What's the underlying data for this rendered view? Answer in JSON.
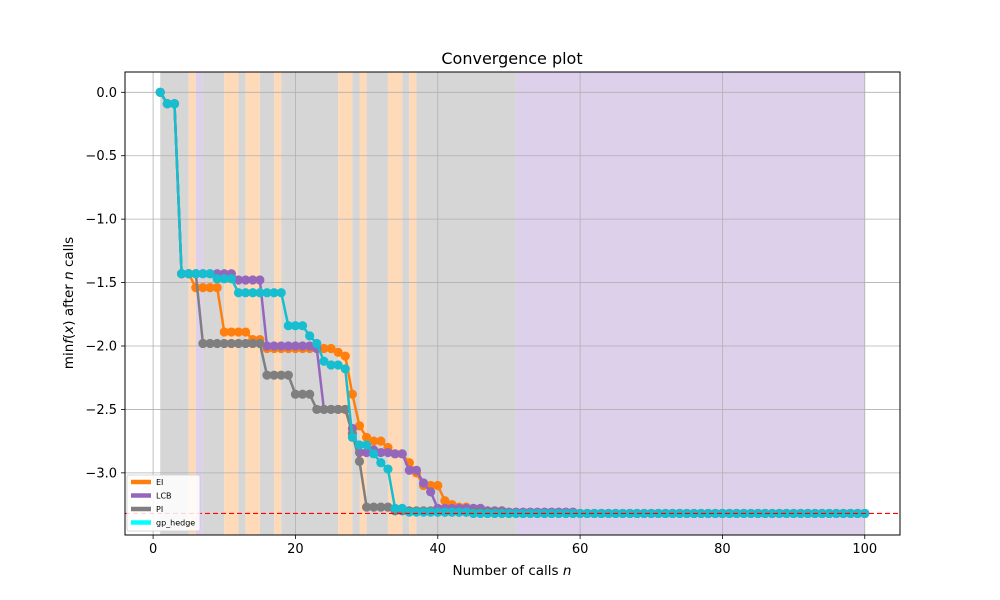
{
  "chart_data": {
    "type": "line",
    "title": "Convergence plot",
    "xlabel": "Number of calls n",
    "ylabel": "min f(x) after n calls",
    "xlim": [
      -3.95,
      104.95
    ],
    "ylim": [
      -3.49,
      0.16
    ],
    "x_ticks": [
      0,
      20,
      40,
      60,
      80,
      100
    ],
    "x_tick_labels": [
      "0",
      "20",
      "40",
      "60",
      "80",
      "100"
    ],
    "y_ticks": [
      0.0,
      -0.5,
      -1.0,
      -1.5,
      -2.0,
      -2.5,
      -3.0
    ],
    "y_tick_labels": [
      "0.0",
      "−0.5",
      "−1.0",
      "−1.5",
      "−2.0",
      "−2.5",
      "−3.0"
    ],
    "grid": true,
    "legend_position": "lower-left",
    "reference_line": {
      "y": -3.32,
      "color": "#ff0000",
      "style": "dashed"
    },
    "background_bands": [
      {
        "x0": 1,
        "x1": 5,
        "color": "#d6d6d6"
      },
      {
        "x0": 5,
        "x1": 6,
        "color": "#ffdab9"
      },
      {
        "x0": 6,
        "x1": 7,
        "color": "#dcd0eb"
      },
      {
        "x0": 7,
        "x1": 10,
        "color": "#d6d6d6"
      },
      {
        "x0": 10,
        "x1": 12,
        "color": "#ffdab9"
      },
      {
        "x0": 12,
        "x1": 13,
        "color": "#d6d6d6"
      },
      {
        "x0": 13,
        "x1": 15,
        "color": "#ffdab9"
      },
      {
        "x0": 15,
        "x1": 17,
        "color": "#d6d6d6"
      },
      {
        "x0": 17,
        "x1": 18,
        "color": "#ffdab9"
      },
      {
        "x0": 18,
        "x1": 26,
        "color": "#d6d6d6"
      },
      {
        "x0": 26,
        "x1": 28,
        "color": "#ffdab9"
      },
      {
        "x0": 28,
        "x1": 29,
        "color": "#d6d6d6"
      },
      {
        "x0": 29,
        "x1": 30,
        "color": "#ffdab9"
      },
      {
        "x0": 30,
        "x1": 33,
        "color": "#d6d6d6"
      },
      {
        "x0": 33,
        "x1": 35,
        "color": "#ffdab9"
      },
      {
        "x0": 35,
        "x1": 36,
        "color": "#d6d6d6"
      },
      {
        "x0": 36,
        "x1": 37,
        "color": "#ffdab9"
      },
      {
        "x0": 37,
        "x1": 51,
        "color": "#d6d6d6"
      },
      {
        "x0": 51,
        "x1": 100,
        "color": "#dcd0eb"
      }
    ],
    "series": [
      {
        "name": "EI",
        "color": "#ff7f0e",
        "steps": [
          [
            1,
            0.0
          ],
          [
            2,
            -0.09
          ],
          [
            4,
            -1.43
          ],
          [
            6,
            -1.54
          ],
          [
            10,
            -1.89
          ],
          [
            14,
            -1.95
          ],
          [
            16,
            -2.02
          ],
          [
            26,
            -2.05
          ],
          [
            27,
            -2.08
          ],
          [
            28,
            -2.38
          ],
          [
            29,
            -2.63
          ],
          [
            30,
            -2.72
          ],
          [
            31,
            -2.75
          ],
          [
            33,
            -2.8
          ],
          [
            34,
            -2.85
          ],
          [
            36,
            -2.92
          ],
          [
            37,
            -3.0
          ],
          [
            38,
            -3.1
          ],
          [
            41,
            -3.22
          ],
          [
            42,
            -3.25
          ],
          [
            43,
            -3.27
          ],
          [
            45,
            -3.29
          ],
          [
            47,
            -3.3
          ],
          [
            50,
            -3.31
          ],
          [
            60,
            -3.32
          ]
        ]
      },
      {
        "name": "LCB",
        "color": "#9467bd",
        "steps": [
          [
            1,
            0.0
          ],
          [
            2,
            -0.09
          ],
          [
            4,
            -1.43
          ],
          [
            12,
            -1.48
          ],
          [
            16,
            -2.0
          ],
          [
            23,
            -2.02
          ],
          [
            24,
            -2.5
          ],
          [
            28,
            -2.65
          ],
          [
            29,
            -2.84
          ],
          [
            31,
            -2.82
          ],
          [
            32,
            -2.84
          ],
          [
            34,
            -2.85
          ],
          [
            36,
            -2.98
          ],
          [
            38,
            -3.08
          ],
          [
            39,
            -3.15
          ],
          [
            40,
            -3.28
          ],
          [
            47,
            -3.3
          ],
          [
            50,
            -3.31
          ],
          [
            60,
            -3.32
          ]
        ]
      },
      {
        "name": "PI",
        "color": "#7f7f7f",
        "steps": [
          [
            1,
            0.0
          ],
          [
            2,
            -0.09
          ],
          [
            4,
            -1.43
          ],
          [
            7,
            -1.98
          ],
          [
            16,
            -2.23
          ],
          [
            20,
            -2.38
          ],
          [
            23,
            -2.5
          ],
          [
            28,
            -2.69
          ],
          [
            29,
            -2.91
          ],
          [
            30,
            -3.27
          ],
          [
            34,
            -3.3
          ],
          [
            40,
            -3.31
          ],
          [
            50,
            -3.32
          ]
        ]
      },
      {
        "name": "gp_hedge",
        "color": "#17becf",
        "steps": [
          [
            1,
            0.0
          ],
          [
            2,
            -0.09
          ],
          [
            4,
            -1.43
          ],
          [
            9,
            -1.47
          ],
          [
            12,
            -1.58
          ],
          [
            19,
            -1.84
          ],
          [
            22,
            -1.92
          ],
          [
            23,
            -1.98
          ],
          [
            24,
            -2.12
          ],
          [
            25,
            -2.15
          ],
          [
            27,
            -2.18
          ],
          [
            28,
            -2.72
          ],
          [
            29,
            -2.78
          ],
          [
            31,
            -2.85
          ],
          [
            32,
            -2.92
          ],
          [
            33,
            -2.97
          ],
          [
            34,
            -3.28
          ],
          [
            36,
            -3.31
          ],
          [
            45,
            -3.32
          ]
        ]
      }
    ],
    "legend": [
      {
        "label": "EI",
        "color": "#ff7f0e"
      },
      {
        "label": "LCB",
        "color": "#9467bd"
      },
      {
        "label": "PI",
        "color": "#7f7f7f"
      },
      {
        "label": "gp_hedge",
        "color": "#00ffff"
      }
    ]
  }
}
